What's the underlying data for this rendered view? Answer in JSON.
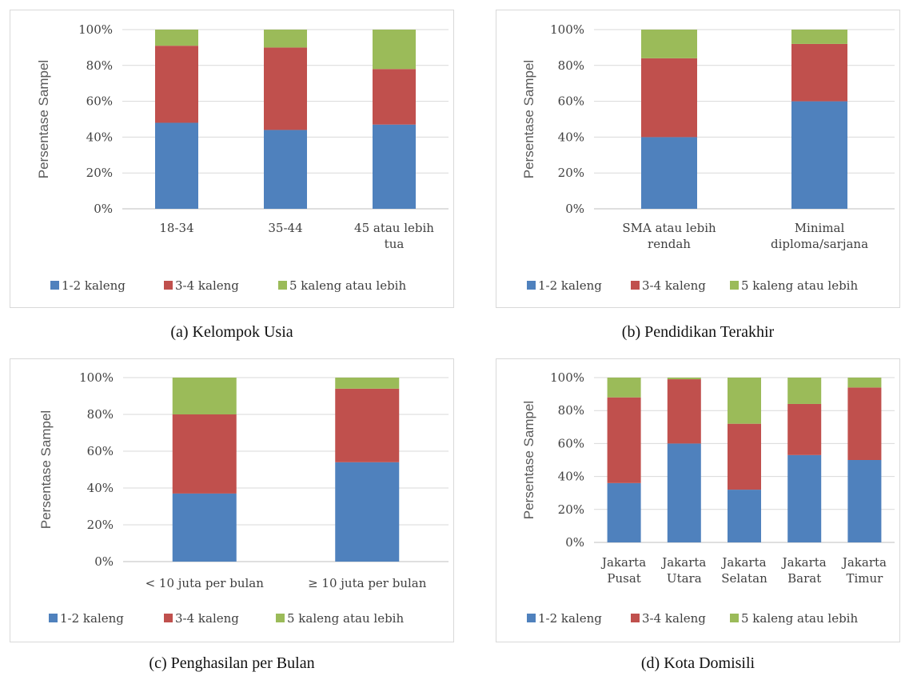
{
  "colors": {
    "s1": "#4f81bd",
    "s2": "#c0504d",
    "s3": "#9bbb59"
  },
  "panels": [
    {
      "caption": "(a)  Kelompok Usia",
      "chart_data": {
        "type": "bar",
        "stacked": true,
        "ylabel": "Persentase Sampel",
        "ylim": [
          0,
          100
        ],
        "yticks": [
          "0%",
          "20%",
          "40%",
          "60%",
          "80%",
          "100%"
        ],
        "categories": [
          [
            "18-34"
          ],
          [
            "35-44"
          ],
          [
            "45 atau lebih",
            "tua"
          ]
        ],
        "series": [
          {
            "name": "1-2 kaleng",
            "values": [
              48,
              44,
              47
            ]
          },
          {
            "name": "3-4 kaleng",
            "values": [
              43,
              46,
              31
            ]
          },
          {
            "name": "5 kaleng atau lebih",
            "values": [
              9,
              10,
              22
            ]
          }
        ],
        "legend": "bottom",
        "grid": true
      }
    },
    {
      "caption": "(b)  Pendidikan Terakhir",
      "chart_data": {
        "type": "bar",
        "stacked": true,
        "ylabel": "Persentase Sampel",
        "ylim": [
          0,
          100
        ],
        "yticks": [
          "0%",
          "20%",
          "40%",
          "60%",
          "80%",
          "100%"
        ],
        "categories": [
          [
            "SMA atau lebih",
            "rendah"
          ],
          [
            "Minimal",
            "diploma/sarjana"
          ]
        ],
        "series": [
          {
            "name": "1-2 kaleng",
            "values": [
              40,
              60
            ]
          },
          {
            "name": "3-4 kaleng",
            "values": [
              44,
              32
            ]
          },
          {
            "name": "5 kaleng atau lebih",
            "values": [
              16,
              8
            ]
          }
        ],
        "legend": "bottom",
        "grid": true
      }
    },
    {
      "caption": "(c)  Penghasilan per Bulan",
      "chart_data": {
        "type": "bar",
        "stacked": true,
        "ylabel": "Persentase Sampel",
        "ylim": [
          0,
          100
        ],
        "yticks": [
          "0%",
          "20%",
          "40%",
          "60%",
          "80%",
          "100%"
        ],
        "categories": [
          [
            "< 10 juta per bulan"
          ],
          [
            "≥ 10 juta per bulan"
          ]
        ],
        "series": [
          {
            "name": "1-2 kaleng",
            "values": [
              37,
              54
            ]
          },
          {
            "name": "3-4 kaleng",
            "values": [
              43,
              40
            ]
          },
          {
            "name": "5 kaleng atau lebih",
            "values": [
              20,
              6
            ]
          }
        ],
        "legend": "bottom",
        "grid": true
      }
    },
    {
      "caption": "(d)  Kota Domisili",
      "chart_data": {
        "type": "bar",
        "stacked": true,
        "ylabel": "Persentase Sampel",
        "ylim": [
          0,
          100
        ],
        "yticks": [
          "0%",
          "20%",
          "40%",
          "60%",
          "80%",
          "100%"
        ],
        "categories": [
          [
            "Jakarta",
            "Pusat"
          ],
          [
            "Jakarta",
            "Utara"
          ],
          [
            "Jakarta",
            "Selatan"
          ],
          [
            "Jakarta",
            "Barat"
          ],
          [
            "Jakarta",
            "Timur"
          ]
        ],
        "series": [
          {
            "name": "1-2 kaleng",
            "values": [
              36,
              60,
              32,
              53,
              50
            ]
          },
          {
            "name": "3-4 kaleng",
            "values": [
              52,
              39,
              40,
              31,
              44
            ]
          },
          {
            "name": "5 kaleng atau lebih",
            "values": [
              12,
              1,
              28,
              16,
              6
            ]
          }
        ],
        "legend": "bottom",
        "grid": true
      }
    }
  ]
}
